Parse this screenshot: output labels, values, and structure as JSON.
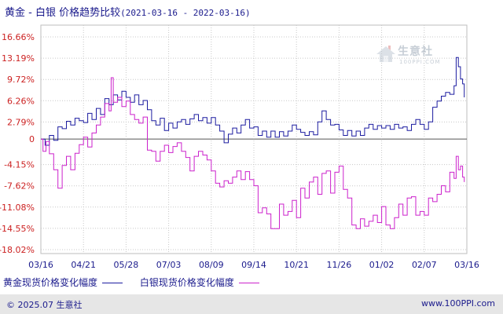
{
  "title": {
    "main": "黄金 - 白银 价格趋势比较",
    "range": "(2021-03-16 - 2022-03-16)"
  },
  "watermark": {
    "name": "生意社",
    "site": "100PPI.COM"
  },
  "legend": {
    "gold": "黄金现货价格变化幅度",
    "silver": "白银现货价格变化幅度"
  },
  "footer": {
    "copyright": "© 2025.07 生意社",
    "site": "www.100PPI.com"
  },
  "colors": {
    "gold": "#1c1ca0",
    "silver": "#cc22cc",
    "zero_line": "#555555",
    "grid": "#c8c8c8",
    "axis_text": "#cc2222",
    "tick_text": "#1a1a8c"
  },
  "chart_data": {
    "type": "line",
    "title": "黄金 - 白银 价格趋势比较",
    "xlabel": "",
    "ylabel": "",
    "x_ticks": [
      "03/16",
      "04/21",
      "05/28",
      "07/03",
      "08/09",
      "09/14",
      "10/21",
      "11/26",
      "01/02",
      "02/07",
      "03/16"
    ],
    "y_ticks": [
      "16.66%",
      "13.19%",
      "9.72%",
      "6.26%",
      "2.79%",
      "0",
      "-4.15%",
      "-7.62%",
      "-11.08%",
      "-14.55%",
      "-18.02%"
    ],
    "ylim": [
      -18.02,
      16.66
    ],
    "xlim": [
      0,
      10
    ],
    "grid": true,
    "legend_position": "bottom",
    "series": [
      {
        "name": "黄金现货价格变化幅度",
        "points": [
          [
            0,
            0
          ],
          [
            0.1,
            -1.0
          ],
          [
            0.2,
            0.6
          ],
          [
            0.3,
            -0.2
          ],
          [
            0.4,
            2.0
          ],
          [
            0.5,
            1.7
          ],
          [
            0.6,
            2.9
          ],
          [
            0.7,
            2.3
          ],
          [
            0.8,
            3.4
          ],
          [
            0.9,
            3.0
          ],
          [
            1.0,
            2.7
          ],
          [
            1.1,
            4.2
          ],
          [
            1.2,
            3.2
          ],
          [
            1.3,
            5.0
          ],
          [
            1.4,
            4.0
          ],
          [
            1.5,
            6.6
          ],
          [
            1.6,
            5.6
          ],
          [
            1.7,
            7.2
          ],
          [
            1.8,
            6.4
          ],
          [
            1.9,
            7.8
          ],
          [
            2.0,
            6.8
          ],
          [
            2.1,
            6.0
          ],
          [
            2.2,
            7.2
          ],
          [
            2.3,
            5.6
          ],
          [
            2.4,
            6.3
          ],
          [
            2.5,
            4.8
          ],
          [
            2.6,
            3.0
          ],
          [
            2.7,
            2.3
          ],
          [
            2.8,
            3.4
          ],
          [
            2.9,
            1.4
          ],
          [
            3.0,
            2.6
          ],
          [
            3.1,
            1.8
          ],
          [
            3.2,
            2.8
          ],
          [
            3.3,
            3.2
          ],
          [
            3.4,
            2.4
          ],
          [
            3.5,
            3.3
          ],
          [
            3.6,
            4.0
          ],
          [
            3.7,
            3.0
          ],
          [
            3.8,
            3.5
          ],
          [
            3.9,
            2.6
          ],
          [
            4.0,
            3.5
          ],
          [
            4.1,
            2.3
          ],
          [
            4.2,
            1.3
          ],
          [
            4.3,
            -0.6
          ],
          [
            4.4,
            0.8
          ],
          [
            4.5,
            1.8
          ],
          [
            4.6,
            1.0
          ],
          [
            4.7,
            2.3
          ],
          [
            4.8,
            3.2
          ],
          [
            4.9,
            1.8
          ],
          [
            5.0,
            2.0
          ],
          [
            5.1,
            0.6
          ],
          [
            5.2,
            1.3
          ],
          [
            5.3,
            0.3
          ],
          [
            5.4,
            1.3
          ],
          [
            5.5,
            0.3
          ],
          [
            5.6,
            1.2
          ],
          [
            5.7,
            0.5
          ],
          [
            5.8,
            1.3
          ],
          [
            5.9,
            2.3
          ],
          [
            6.0,
            1.6
          ],
          [
            6.1,
            1.1
          ],
          [
            6.2,
            0.6
          ],
          [
            6.3,
            1.2
          ],
          [
            6.4,
            0.7
          ],
          [
            6.5,
            2.8
          ],
          [
            6.6,
            4.6
          ],
          [
            6.7,
            3.2
          ],
          [
            6.8,
            2.3
          ],
          [
            6.9,
            2.4
          ],
          [
            7.0,
            1.5
          ],
          [
            7.1,
            0.6
          ],
          [
            7.2,
            1.4
          ],
          [
            7.3,
            0.5
          ],
          [
            7.4,
            1.3
          ],
          [
            7.5,
            0.6
          ],
          [
            7.6,
            1.8
          ],
          [
            7.7,
            2.4
          ],
          [
            7.8,
            1.6
          ],
          [
            7.9,
            2.2
          ],
          [
            8.0,
            1.8
          ],
          [
            8.1,
            2.2
          ],
          [
            8.2,
            1.6
          ],
          [
            8.3,
            2.4
          ],
          [
            8.4,
            1.8
          ],
          [
            8.5,
            2.0
          ],
          [
            8.6,
            1.4
          ],
          [
            8.7,
            2.4
          ],
          [
            8.8,
            3.2
          ],
          [
            8.9,
            2.4
          ],
          [
            9.0,
            1.6
          ],
          [
            9.1,
            2.8
          ],
          [
            9.2,
            5.2
          ],
          [
            9.3,
            6.2
          ],
          [
            9.4,
            7.0
          ],
          [
            9.5,
            7.6
          ],
          [
            9.6,
            7.3
          ],
          [
            9.7,
            8.7
          ],
          [
            9.75,
            13.3
          ],
          [
            9.8,
            11.8
          ],
          [
            9.85,
            9.8
          ],
          [
            9.9,
            9.0
          ],
          [
            9.94,
            6.8
          ]
        ]
      },
      {
        "name": "白银现货价格变化幅度",
        "points": [
          [
            0,
            0
          ],
          [
            0.05,
            -2.0
          ],
          [
            0.12,
            -0.4
          ],
          [
            0.2,
            -2.4
          ],
          [
            0.3,
            -5.0
          ],
          [
            0.4,
            -8.0
          ],
          [
            0.5,
            -4.3
          ],
          [
            0.6,
            -2.8
          ],
          [
            0.7,
            -5.0
          ],
          [
            0.8,
            -2.3
          ],
          [
            0.9,
            -0.9
          ],
          [
            1.0,
            0.3
          ],
          [
            1.1,
            -1.3
          ],
          [
            1.2,
            1.0
          ],
          [
            1.3,
            2.3
          ],
          [
            1.4,
            3.6
          ],
          [
            1.5,
            5.8
          ],
          [
            1.6,
            4.6
          ],
          [
            1.65,
            10.0
          ],
          [
            1.7,
            6.0
          ],
          [
            1.8,
            6.8
          ],
          [
            1.9,
            5.3
          ],
          [
            2.0,
            6.2
          ],
          [
            2.1,
            4.0
          ],
          [
            2.2,
            3.2
          ],
          [
            2.3,
            2.6
          ],
          [
            2.4,
            3.6
          ],
          [
            2.5,
            -1.8
          ],
          [
            2.6,
            -2.0
          ],
          [
            2.7,
            -3.6
          ],
          [
            2.8,
            -2.0
          ],
          [
            2.9,
            -1.0
          ],
          [
            3.0,
            -2.2
          ],
          [
            3.1,
            -1.2
          ],
          [
            3.2,
            -0.6
          ],
          [
            3.3,
            -2.0
          ],
          [
            3.4,
            -3.0
          ],
          [
            3.5,
            -5.2
          ],
          [
            3.6,
            -2.8
          ],
          [
            3.7,
            -2.0
          ],
          [
            3.8,
            -2.6
          ],
          [
            3.9,
            -3.4
          ],
          [
            4.0,
            -5.2
          ],
          [
            4.1,
            -7.2
          ],
          [
            4.2,
            -7.8
          ],
          [
            4.3,
            -6.8
          ],
          [
            4.4,
            -7.2
          ],
          [
            4.5,
            -6.2
          ],
          [
            4.6,
            -5.2
          ],
          [
            4.7,
            -6.6
          ],
          [
            4.8,
            -5.3
          ],
          [
            4.9,
            -6.6
          ],
          [
            5.0,
            -7.6
          ],
          [
            5.1,
            -12.0
          ],
          [
            5.2,
            -11.2
          ],
          [
            5.3,
            -12.2
          ],
          [
            5.4,
            -14.6
          ],
          [
            5.5,
            -14.6
          ],
          [
            5.6,
            -10.6
          ],
          [
            5.7,
            -12.4
          ],
          [
            5.8,
            -11.8
          ],
          [
            5.9,
            -10.0
          ],
          [
            6.0,
            -12.8
          ],
          [
            6.1,
            -8.0
          ],
          [
            6.2,
            -9.6
          ],
          [
            6.3,
            -7.0
          ],
          [
            6.4,
            -6.2
          ],
          [
            6.5,
            -9.0
          ],
          [
            6.6,
            -5.6
          ],
          [
            6.7,
            -5.2
          ],
          [
            6.8,
            -8.8
          ],
          [
            6.9,
            -5.4
          ],
          [
            7.0,
            -4.4
          ],
          [
            7.1,
            -8.2
          ],
          [
            7.2,
            -9.6
          ],
          [
            7.3,
            -14.0
          ],
          [
            7.4,
            -14.6
          ],
          [
            7.5,
            -13.0
          ],
          [
            7.6,
            -14.2
          ],
          [
            7.7,
            -13.4
          ],
          [
            7.8,
            -12.4
          ],
          [
            7.9,
            -13.6
          ],
          [
            8.0,
            -11.0
          ],
          [
            8.1,
            -14.0
          ],
          [
            8.2,
            -14.6
          ],
          [
            8.3,
            -12.8
          ],
          [
            8.4,
            -10.6
          ],
          [
            8.5,
            -12.4
          ],
          [
            8.6,
            -9.6
          ],
          [
            8.7,
            -9.4
          ],
          [
            8.8,
            -12.4
          ],
          [
            8.9,
            -11.8
          ],
          [
            9.0,
            -12.4
          ],
          [
            9.1,
            -9.6
          ],
          [
            9.2,
            -10.2
          ],
          [
            9.3,
            -9.0
          ],
          [
            9.4,
            -7.6
          ],
          [
            9.5,
            -8.6
          ],
          [
            9.6,
            -5.4
          ],
          [
            9.7,
            -6.4
          ],
          [
            9.75,
            -2.8
          ],
          [
            9.8,
            -5.0
          ],
          [
            9.85,
            -4.4
          ],
          [
            9.9,
            -6.2
          ],
          [
            9.94,
            -7.0
          ]
        ]
      }
    ]
  }
}
